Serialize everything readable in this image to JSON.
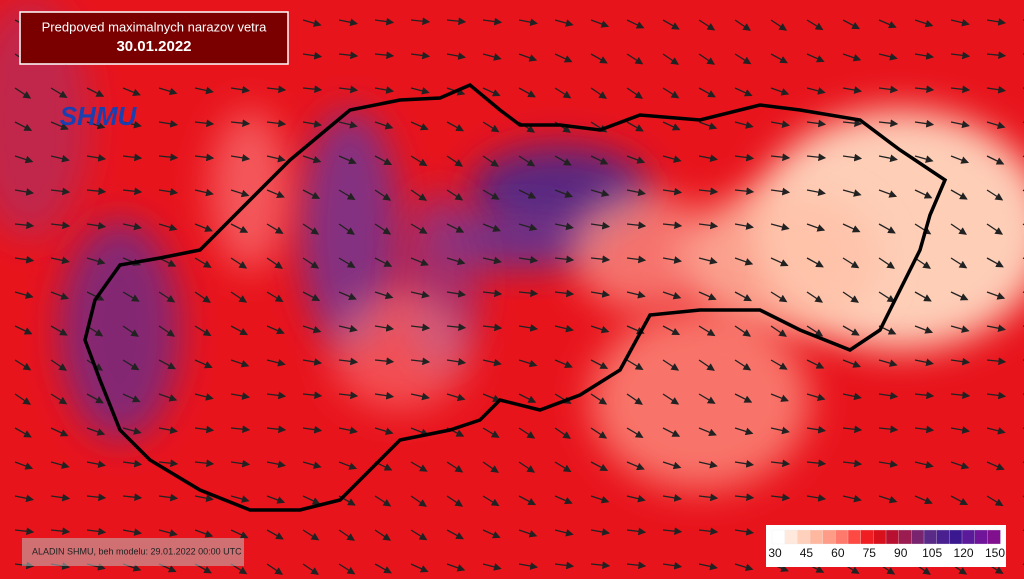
{
  "header": {
    "title": "Predpoved maximalnych narazov vetra",
    "date": "30.01.2022"
  },
  "logo": "SHMU",
  "footer": "ALADIN SHMU, beh modelu: 29.01.2022 00:00 UTC",
  "legend": {
    "labels": [
      30,
      45,
      60,
      75,
      90,
      105,
      120,
      150
    ]
  }
}
